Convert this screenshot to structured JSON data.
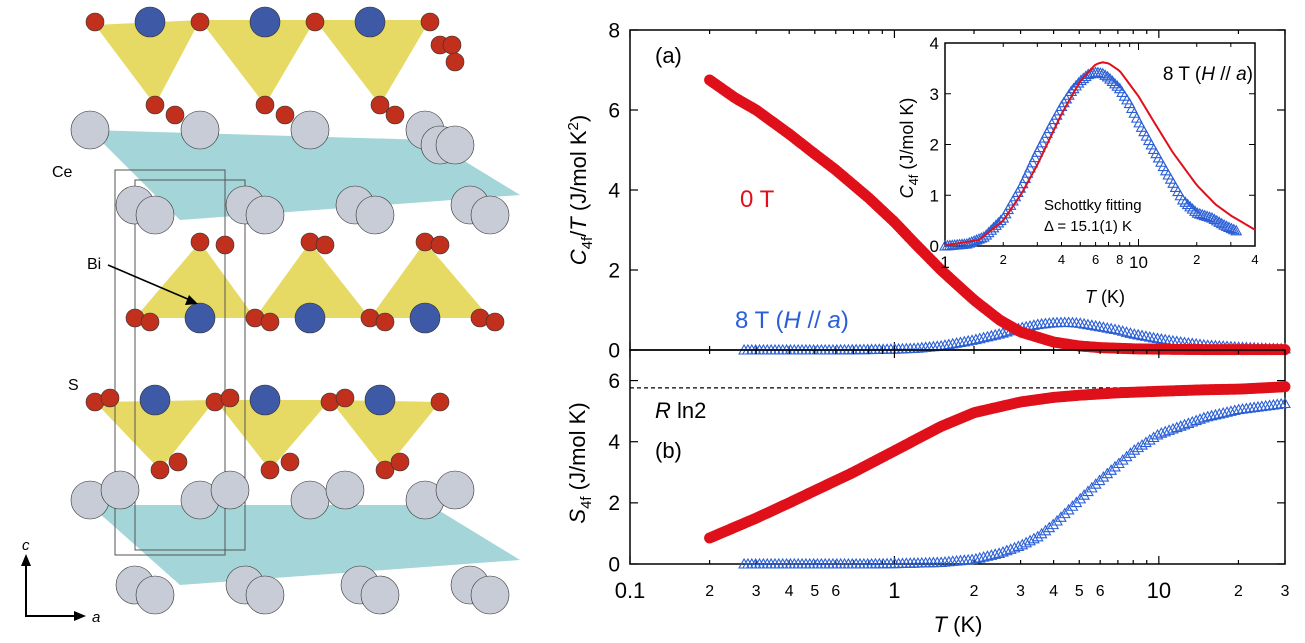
{
  "structure": {
    "labels": {
      "ce": "Ce",
      "bi": "Bi",
      "s": "S"
    },
    "axes": {
      "c": "c",
      "a": "a"
    },
    "colors": {
      "sulfur": "#c0301c",
      "bismuth": "#3e5aa6",
      "cerium": "#c8ccd6",
      "pyramid": "#e2d44a",
      "slab": "#86c7cc",
      "cell": "#555555"
    }
  },
  "chart_data": [
    {
      "id": "panel-a",
      "type": "scatter",
      "panel_label": "(a)",
      "ylabel_parts": [
        "C",
        "4f",
        "/",
        "T",
        " (J/mol K",
        "2",
        ")"
      ],
      "xscale": "log",
      "xlim": [
        0.1,
        30
      ],
      "ylim": [
        0,
        8
      ],
      "yticks": [
        0,
        2,
        4,
        6,
        8
      ],
      "series": [
        {
          "name": "0 T",
          "marker": "filled-circle",
          "color": "#e0101a",
          "x": [
            0.2,
            0.25,
            0.3,
            0.4,
            0.5,
            0.6,
            0.8,
            1.0,
            1.2,
            1.5,
            2.0,
            2.5,
            3.0,
            4.0,
            5.0,
            6.0,
            8.0,
            10,
            15,
            20,
            30
          ],
          "y": [
            6.75,
            6.3,
            6.0,
            5.4,
            4.9,
            4.5,
            3.8,
            3.2,
            2.65,
            2.0,
            1.25,
            0.75,
            0.45,
            0.2,
            0.1,
            0.06,
            0.03,
            0.02,
            0.01,
            0.01,
            0.01
          ]
        },
        {
          "name": "8 T (H // a)",
          "marker": "open-triangle",
          "color": "#2a5fd6",
          "x": [
            0.27,
            0.4,
            0.6,
            0.8,
            1.0,
            1.2,
            1.5,
            2.0,
            2.5,
            3.0,
            3.5,
            4.0,
            4.5,
            5.0,
            6.0,
            7.0,
            8.0,
            10,
            12,
            15,
            20,
            25,
            30
          ],
          "y": [
            0.0,
            0.0,
            0.0,
            0.01,
            0.02,
            0.04,
            0.1,
            0.25,
            0.4,
            0.55,
            0.64,
            0.68,
            0.69,
            0.67,
            0.58,
            0.5,
            0.4,
            0.28,
            0.2,
            0.12,
            0.07,
            0.04,
            0.03
          ]
        }
      ],
      "annotations": {
        "label_0T": "0 T",
        "label_8T_a": "8 T (",
        "label_8T_h": "H",
        "label_8T_b": " // ",
        "label_8T_i": "a",
        "label_8T_c": ")"
      }
    },
    {
      "id": "panel-a-inset",
      "type": "scatter",
      "ylabel_parts": [
        "C",
        "4f",
        " (J/mol K)"
      ],
      "xlabel_parts": [
        "T",
        " (K)"
      ],
      "xscale": "log",
      "xlim": [
        1,
        40
      ],
      "ylim": [
        0,
        4
      ],
      "yticks": [
        0,
        1,
        2,
        3,
        4
      ],
      "title_parts": [
        "8 T (",
        "H",
        " // ",
        "a",
        ")"
      ],
      "fit_label_1": "Schottky fitting",
      "fit_label_2": "Δ = 15.1(1) K",
      "series": [
        {
          "name": "8 T (H // a)",
          "marker": "open-triangle",
          "color": "#2a5fd6",
          "x": [
            1.0,
            1.3,
            1.6,
            2.0,
            2.5,
            3.0,
            3.5,
            4.0,
            4.5,
            5.0,
            5.5,
            6.0,
            6.5,
            7.0,
            8.0,
            9.0,
            10,
            12,
            14,
            17,
            20,
            24,
            28,
            32
          ],
          "y": [
            0.0,
            0.04,
            0.18,
            0.55,
            1.2,
            1.85,
            2.35,
            2.75,
            3.05,
            3.25,
            3.38,
            3.42,
            3.4,
            3.32,
            3.1,
            2.8,
            2.45,
            1.9,
            1.45,
            0.9,
            0.65,
            0.55,
            0.4,
            0.3
          ]
        },
        {
          "name": "Schottky fit",
          "marker": "line",
          "color": "#e0101a",
          "x": [
            1.0,
            1.5,
            2.0,
            2.5,
            3.0,
            4.0,
            5.0,
            6.0,
            6.5,
            7.0,
            8.0,
            10,
            12,
            15,
            20,
            25,
            30,
            40
          ],
          "y": [
            0.01,
            0.12,
            0.5,
            1.05,
            1.6,
            2.6,
            3.25,
            3.58,
            3.62,
            3.6,
            3.45,
            2.95,
            2.45,
            1.85,
            1.2,
            0.82,
            0.6,
            0.32
          ]
        }
      ]
    },
    {
      "id": "panel-b",
      "type": "scatter",
      "panel_label": "(b)",
      "ylabel_parts": [
        "S",
        "4f",
        " (J/mol K)"
      ],
      "xlabel_parts": [
        "T",
        " (K)"
      ],
      "xscale": "log",
      "xlim": [
        0.1,
        30
      ],
      "ylim": [
        0,
        7
      ],
      "yticks": [
        0,
        2,
        4,
        6
      ],
      "xticklabels": {
        "major": [
          "0.1",
          "1",
          "10"
        ],
        "minor": [
          "2",
          "3",
          "4",
          "5",
          "6",
          "2",
          "3",
          "4",
          "5",
          "6",
          "2",
          "3"
        ]
      },
      "reference_line": {
        "label_italic": "R",
        "label_rest": " ln2",
        "value": 5.76
      },
      "series": [
        {
          "name": "0 T",
          "marker": "filled-circle",
          "color": "#e0101a",
          "x": [
            0.2,
            0.3,
            0.4,
            0.5,
            0.7,
            1.0,
            1.5,
            2.0,
            3.0,
            4.0,
            5.0,
            7.0,
            10,
            15,
            20,
            30
          ],
          "y": [
            0.85,
            1.5,
            2.0,
            2.4,
            3.0,
            3.7,
            4.5,
            4.95,
            5.3,
            5.45,
            5.52,
            5.6,
            5.65,
            5.7,
            5.72,
            5.8
          ]
        },
        {
          "name": "8 T (H // a)",
          "marker": "open-triangle",
          "color": "#2a5fd6",
          "x": [
            0.27,
            0.4,
            0.6,
            0.8,
            1.0,
            1.5,
            2.0,
            2.5,
            3.0,
            3.5,
            4.0,
            5.0,
            6.0,
            8.0,
            10,
            15,
            20,
            30
          ],
          "y": [
            0.0,
            0.0,
            0.0,
            0.0,
            0.01,
            0.05,
            0.15,
            0.35,
            0.6,
            0.9,
            1.3,
            2.1,
            2.75,
            3.7,
            4.25,
            4.8,
            5.05,
            5.25
          ]
        }
      ]
    }
  ]
}
